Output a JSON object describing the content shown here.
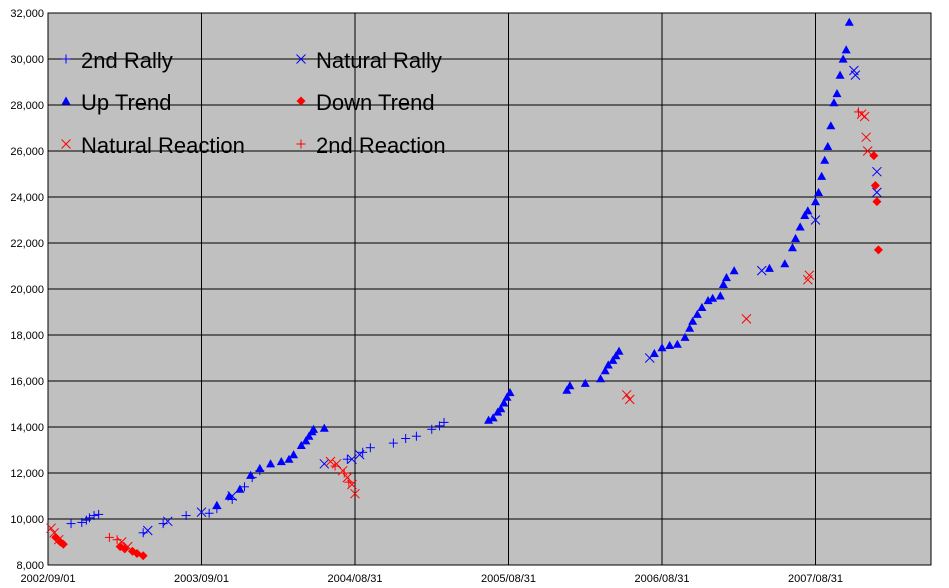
{
  "chart_data": {
    "type": "scatter",
    "title": "",
    "xlabel": "",
    "ylabel": "",
    "ylim": [
      8000,
      32000
    ],
    "y_ticks": [
      "8,000",
      "10,000",
      "12,000",
      "14,000",
      "16,000",
      "18,000",
      "20,000",
      "22,000",
      "24,000",
      "26,000",
      "28,000",
      "30,000",
      "32,000"
    ],
    "x_ticks": [
      "2002/09/01",
      "2003/09/01",
      "2004/08/31",
      "2005/08/31",
      "2006/08/31",
      "2007/08/31"
    ],
    "grid": true,
    "legend_position": "top-left",
    "background_color": "#c0c0c0",
    "series": [
      {
        "name": "2nd Rally",
        "marker": "plus-icon",
        "color": "#0000ff",
        "points": [
          [
            0.15,
            9800
          ],
          [
            0.22,
            9850
          ],
          [
            0.25,
            9950
          ],
          [
            0.27,
            10050
          ],
          [
            0.3,
            10150
          ],
          [
            0.33,
            10200
          ],
          [
            0.62,
            9400
          ],
          [
            0.75,
            9800
          ],
          [
            0.9,
            10150
          ],
          [
            1.05,
            10250
          ],
          [
            1.1,
            10450
          ],
          [
            1.2,
            10850
          ],
          [
            1.28,
            11400
          ],
          [
            1.33,
            11800
          ],
          [
            1.38,
            12100
          ],
          [
            1.95,
            12600
          ],
          [
            2.05,
            12900
          ],
          [
            2.1,
            13100
          ],
          [
            2.25,
            13300
          ],
          [
            2.33,
            13500
          ],
          [
            2.4,
            13600
          ],
          [
            2.5,
            13900
          ],
          [
            2.55,
            14050
          ],
          [
            2.58,
            14200
          ]
        ]
      },
      {
        "name": "Natural Rally",
        "marker": "x-icon",
        "color": "#0000ff",
        "points": [
          [
            0.65,
            9500
          ],
          [
            0.78,
            9900
          ],
          [
            1.0,
            10300
          ],
          [
            1.2,
            11000
          ],
          [
            1.8,
            12400
          ],
          [
            1.98,
            12600
          ],
          [
            2.03,
            12800
          ],
          [
            3.92,
            17000
          ],
          [
            4.65,
            20800
          ],
          [
            5.0,
            23000
          ],
          [
            5.25,
            29500
          ],
          [
            5.26,
            29300
          ],
          [
            5.4,
            25100
          ],
          [
            5.4,
            24200
          ]
        ]
      },
      {
        "name": "Up Trend",
        "marker": "triangle-up-icon",
        "color": "#0000ff",
        "points": [
          [
            1.1,
            10600
          ],
          [
            1.18,
            11000
          ],
          [
            1.25,
            11300
          ],
          [
            1.32,
            11900
          ],
          [
            1.38,
            12200
          ],
          [
            1.45,
            12400
          ],
          [
            1.52,
            12500
          ],
          [
            1.57,
            12600
          ],
          [
            1.6,
            12800
          ],
          [
            1.65,
            13200
          ],
          [
            1.68,
            13400
          ],
          [
            1.7,
            13600
          ],
          [
            1.72,
            13800
          ],
          [
            1.73,
            13900
          ],
          [
            1.8,
            13950
          ],
          [
            2.87,
            14300
          ],
          [
            2.9,
            14400
          ],
          [
            2.93,
            14650
          ],
          [
            2.95,
            14800
          ],
          [
            2.97,
            15050
          ],
          [
            2.99,
            15300
          ],
          [
            3.01,
            15500
          ],
          [
            3.38,
            15600
          ],
          [
            3.4,
            15800
          ],
          [
            3.5,
            15900
          ],
          [
            3.6,
            16100
          ],
          [
            3.63,
            16450
          ],
          [
            3.65,
            16700
          ],
          [
            3.68,
            16900
          ],
          [
            3.7,
            17100
          ],
          [
            3.72,
            17300
          ],
          [
            3.95,
            17200
          ],
          [
            4.0,
            17450
          ],
          [
            4.05,
            17550
          ],
          [
            4.1,
            17600
          ],
          [
            4.15,
            17900
          ],
          [
            4.18,
            18300
          ],
          [
            4.2,
            18600
          ],
          [
            4.23,
            18900
          ],
          [
            4.26,
            19200
          ],
          [
            4.3,
            19500
          ],
          [
            4.33,
            19600
          ],
          [
            4.38,
            19700
          ],
          [
            4.4,
            20200
          ],
          [
            4.42,
            20500
          ],
          [
            4.47,
            20800
          ],
          [
            4.7,
            20900
          ],
          [
            4.8,
            21100
          ],
          [
            4.85,
            21800
          ],
          [
            4.87,
            22200
          ],
          [
            4.9,
            22700
          ],
          [
            4.93,
            23200
          ],
          [
            4.95,
            23400
          ],
          [
            5.0,
            23800
          ],
          [
            5.02,
            24200
          ],
          [
            5.04,
            24900
          ],
          [
            5.06,
            25600
          ],
          [
            5.08,
            26200
          ],
          [
            5.1,
            27100
          ],
          [
            5.12,
            28100
          ],
          [
            5.14,
            28500
          ],
          [
            5.16,
            29300
          ],
          [
            5.18,
            30000
          ],
          [
            5.2,
            30400
          ],
          [
            5.22,
            31600
          ]
        ]
      },
      {
        "name": "Down Trend",
        "marker": "diamond-icon",
        "color": "#ff0000",
        "points": [
          [
            0.05,
            9200
          ],
          [
            0.08,
            9000
          ],
          [
            0.1,
            8900
          ],
          [
            0.47,
            8800
          ],
          [
            0.5,
            8700
          ],
          [
            0.55,
            8600
          ],
          [
            0.58,
            8500
          ],
          [
            0.62,
            8400
          ],
          [
            5.38,
            25800
          ],
          [
            5.39,
            24500
          ],
          [
            5.4,
            23800
          ],
          [
            5.41,
            21700
          ]
        ]
      },
      {
        "name": "Natural Reaction",
        "marker": "x-icon",
        "color": "#ff0000",
        "points": [
          [
            0.02,
            9600
          ],
          [
            0.04,
            9400
          ],
          [
            0.07,
            9100
          ],
          [
            0.48,
            9000
          ],
          [
            0.52,
            8800
          ],
          [
            1.84,
            12500
          ],
          [
            1.88,
            12400
          ],
          [
            1.92,
            12100
          ],
          [
            1.95,
            11800
          ],
          [
            1.98,
            11500
          ],
          [
            2.0,
            11100
          ],
          [
            3.77,
            15400
          ],
          [
            3.79,
            15200
          ],
          [
            4.55,
            18700
          ],
          [
            4.95,
            20400
          ],
          [
            4.96,
            20600
          ],
          [
            5.3,
            27600
          ],
          [
            5.32,
            27500
          ],
          [
            5.33,
            26600
          ],
          [
            5.34,
            26000
          ]
        ]
      },
      {
        "name": "2nd Reaction",
        "marker": "plus-icon",
        "color": "#ff0000",
        "points": [
          [
            0.4,
            9200
          ],
          [
            0.45,
            9100
          ],
          [
            1.87,
            12300
          ],
          [
            1.93,
            12000
          ],
          [
            1.96,
            11600
          ],
          [
            5.28,
            27700
          ]
        ]
      }
    ]
  }
}
